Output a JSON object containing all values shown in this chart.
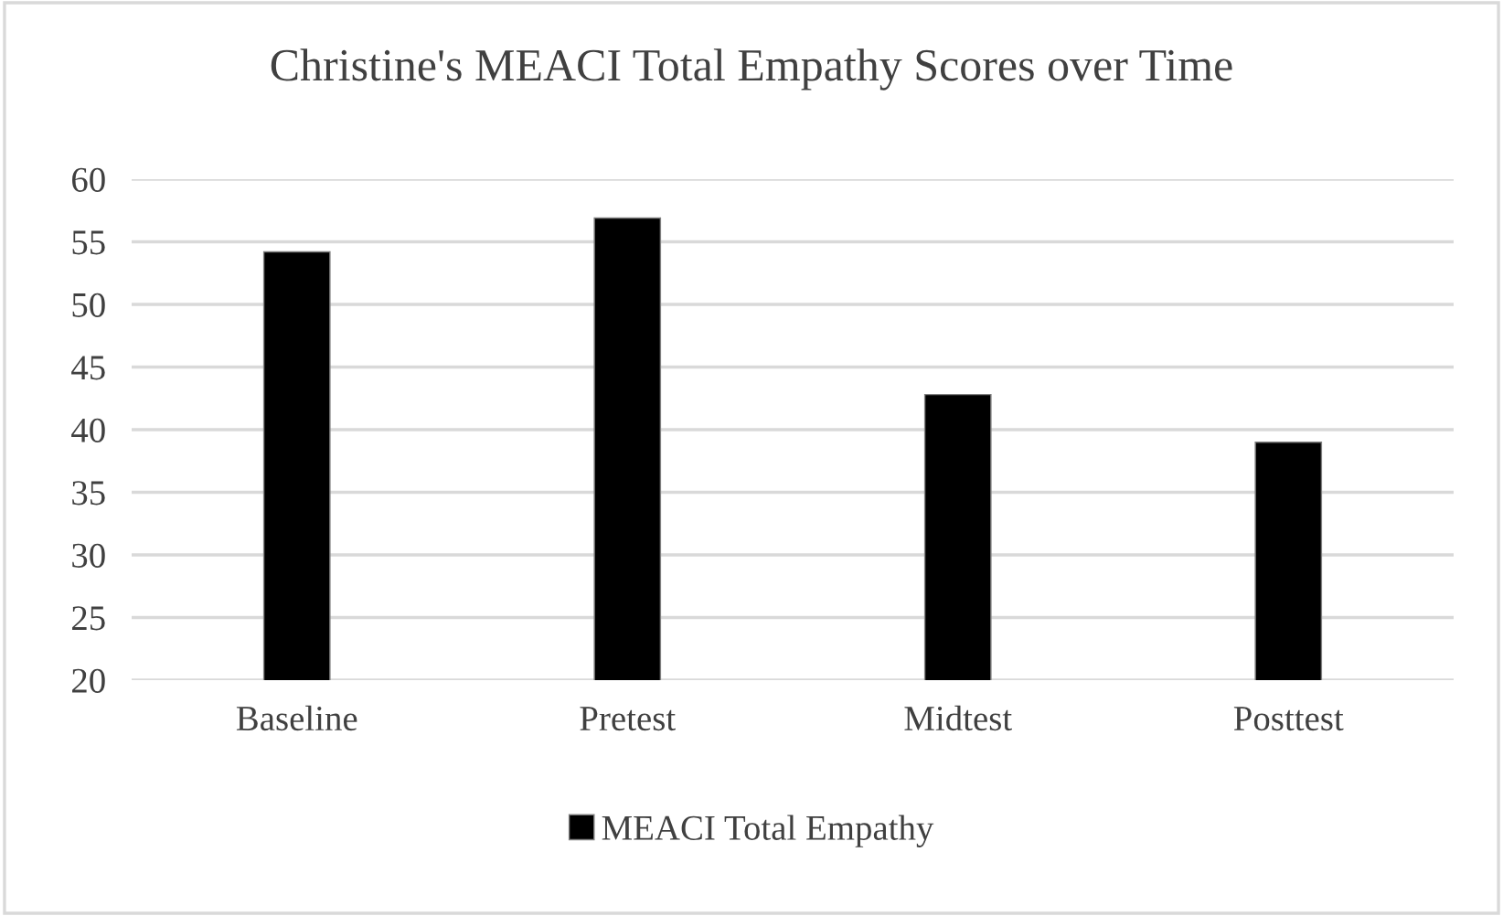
{
  "chart_data": {
    "type": "bar",
    "title": "Christine's MEACI Total Empathy Scores over Time",
    "categories": [
      "Baseline",
      "Pretest",
      "Midtest",
      "Posttest"
    ],
    "series": [
      {
        "name": "MEACI Total Empathy",
        "color": "#000000",
        "values": [
          54.2,
          56.9,
          42.8,
          39.0
        ]
      }
    ],
    "ylim": [
      20,
      60
    ],
    "yticks": [
      20,
      25,
      30,
      35,
      40,
      45,
      50,
      55,
      60
    ],
    "grid": "y",
    "legend": "bottom"
  }
}
